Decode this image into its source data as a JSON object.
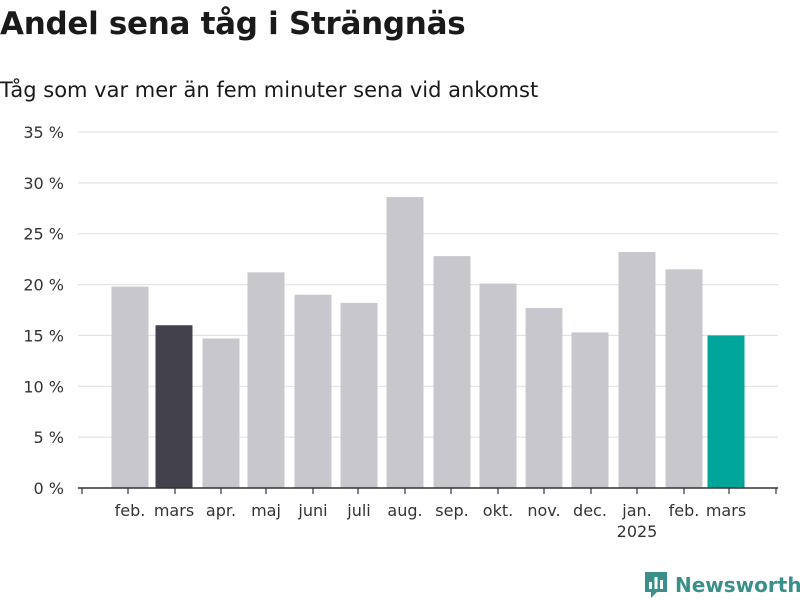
{
  "header": {
    "title": "Andel sena tåg i Strängnäs",
    "subtitle": "Tåg som var mer än fem minuter sena vid ankomst"
  },
  "brand": {
    "name": "Newsworthy",
    "icon": "bar-chart-logo-icon"
  },
  "colors": {
    "default_bar": "#c8c7cd",
    "previous_year_bar": "#42414c",
    "current_bar": "#00a599",
    "grid": "#dddddd",
    "axis": "#333333"
  },
  "chart_data": {
    "type": "bar",
    "title": "Andel sena tåg i Strängnäs",
    "subtitle": "Tåg som var mer än fem minuter sena vid ankomst",
    "xlabel": "",
    "ylabel": "",
    "ylim": [
      0,
      35
    ],
    "y_ticks": [
      0,
      5,
      10,
      15,
      20,
      25,
      30,
      35
    ],
    "y_tick_labels": [
      "0 %",
      "5 %",
      "10 %",
      "15 %",
      "20 %",
      "25 %",
      "30 %",
      "35 %"
    ],
    "categories": [
      "feb.",
      "mars",
      "apr.",
      "maj",
      "juni",
      "juli",
      "aug.",
      "sep.",
      "okt.",
      "nov.",
      "dec.",
      "jan.",
      "feb.",
      "mars"
    ],
    "year_labels": [
      "",
      "",
      "",
      "",
      "",
      "",
      "",
      "",
      "",
      "",
      "",
      "2025",
      "",
      ""
    ],
    "values": [
      19.8,
      16.0,
      14.7,
      21.2,
      19.0,
      18.2,
      28.6,
      22.8,
      20.1,
      17.7,
      15.3,
      23.2,
      21.5,
      15.0
    ],
    "highlight": [
      "default",
      "previous_year",
      "default",
      "default",
      "default",
      "default",
      "default",
      "default",
      "default",
      "default",
      "default",
      "default",
      "default",
      "current"
    ],
    "grid": true,
    "legend": "none"
  }
}
